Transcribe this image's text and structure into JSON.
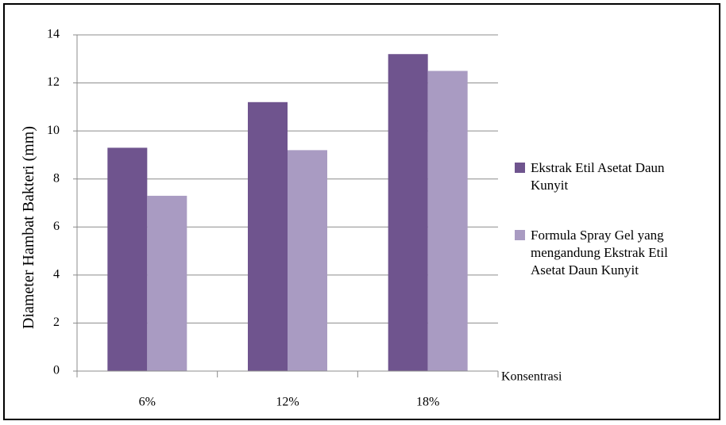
{
  "chart_data": {
    "type": "bar",
    "categories": [
      "6%",
      "12%",
      "18%"
    ],
    "series": [
      {
        "name": "Ekstrak Etil Asetat Daun Kunyit",
        "color": "#6F548E",
        "values": [
          9.3,
          11.2,
          13.2
        ]
      },
      {
        "name": "Formula Spray Gel yang mengandung Ekstrak Etil Asetat Daun Kunyit",
        "color": "#A99BC2",
        "values": [
          7.3,
          9.2,
          12.5
        ]
      }
    ],
    "title": "",
    "xlabel": "Konsentrasi",
    "ylabel": "Diameter Hambat Bakteri (mm)",
    "ylim": [
      0,
      14
    ],
    "yticks": [
      "0",
      "2",
      "4",
      "6",
      "8",
      "10",
      "12",
      "14"
    ],
    "grid": true,
    "legend_position": "right",
    "legend_lines": [
      [
        "Ekstrak Etil Asetat Daun",
        "Kunyit"
      ],
      [
        "Formula Spray Gel yang",
        "mengandung Ekstrak Etil",
        "Asetat Daun Kunyit"
      ]
    ]
  }
}
